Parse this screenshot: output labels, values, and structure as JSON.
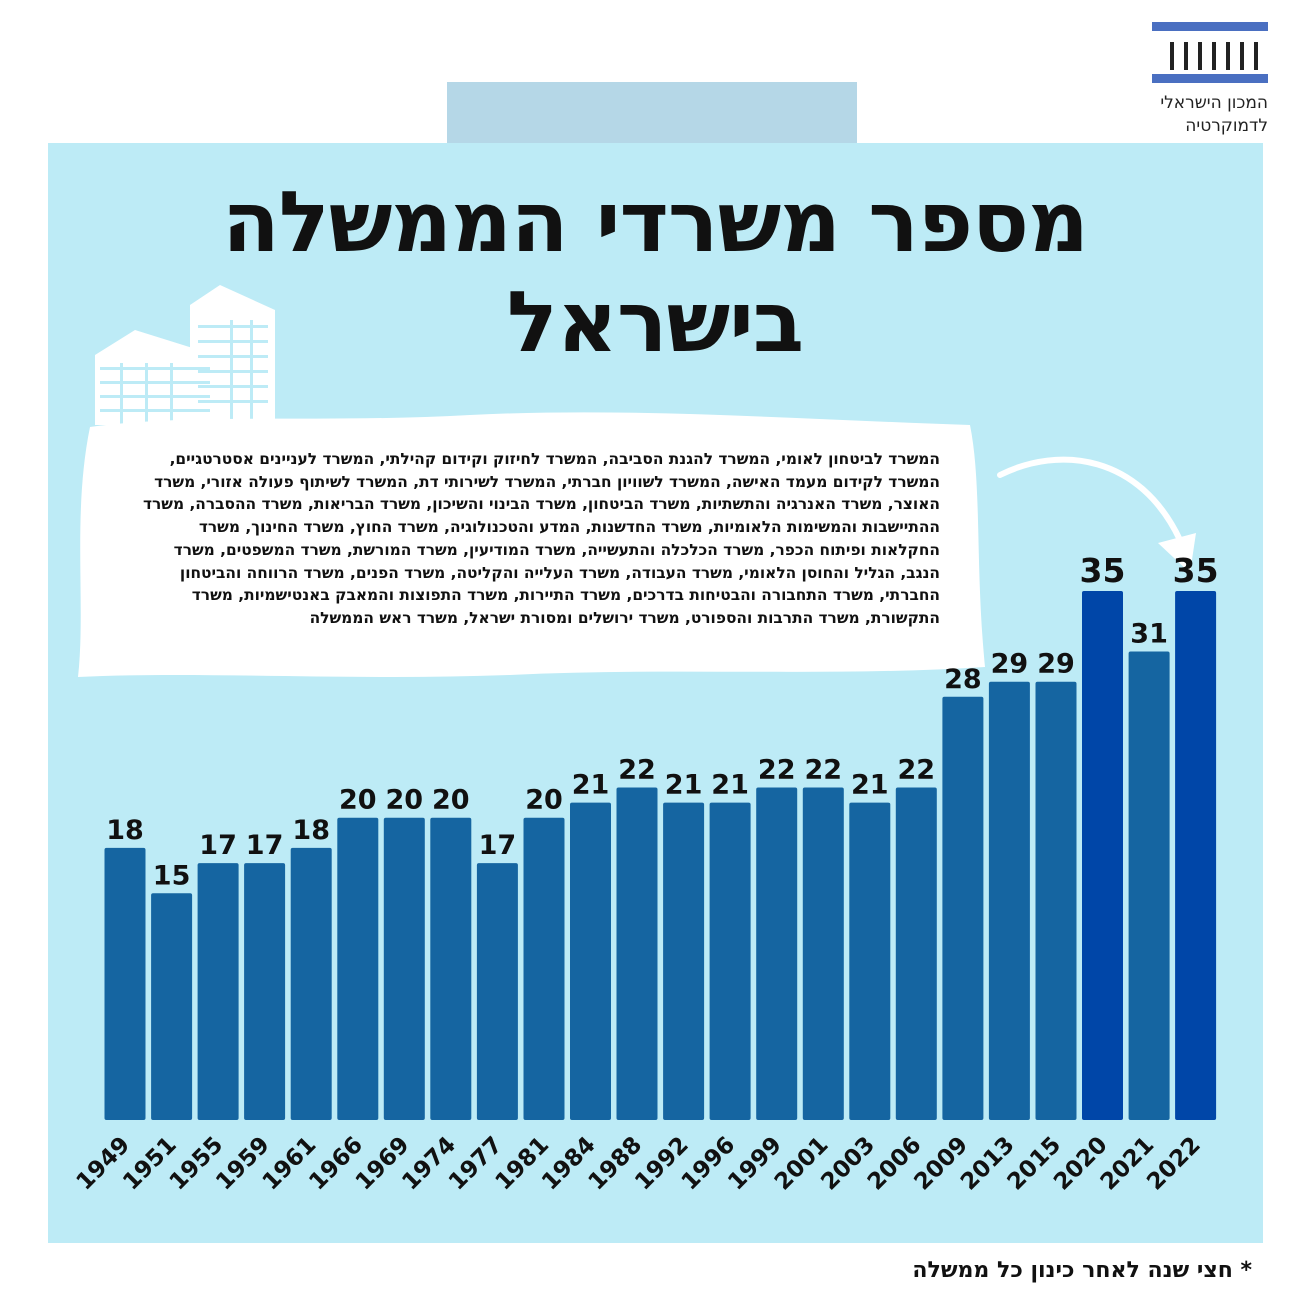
{
  "logo": {
    "line1": "המכון הישראלי",
    "line2": "לדמוקרטיה"
  },
  "title": "מספר משרדי הממשלה בישראל",
  "note_text": "המשרד לביטחון לאומי, המשרד להגנת הסביבה, המשרד לחיזוק וקידום קהילתי, המשרד לעניינים אסטרטגיים, המשרד לקידום מעמד האישה, המשרד לשוויון חברתי, המשרד לשירותי דת, המשרד לשיתוף פעולה אזורי, משרד האוצר, משרד האנרגיה והתשתיות, משרד הביטחון, משרד הבינוי והשיכון, משרד הבריאות, משרד ההסברה, משרד ההתיישבות והמשימות הלאומיות, משרד החדשנות, המדע והטכנולוגיה, משרד החוץ, משרד החינוך, משרד החקלאות ופיתוח הכפר, משרד הכלכלה והתעשייה, משרד המודיעין, משרד המורשת, משרד המשפטים, משרד הנגב, הגליל והחוסן הלאומי, משרד העבודה, משרד העלייה והקליטה, משרד הפנים, משרד הרווחה והביטחון החברתי, משרד התחבורה והבטיחות בדרכים, משרד התיירות, משרד התפוצות והמאבק באנטישמיות, משרד התקשורת, משרד התרבות והספורט, משרד ירושלים ומסורת ישראל, משרד ראש הממשלה",
  "footnote": "* חצי שנה לאחר כינון כל ממשלה",
  "colors": {
    "bar": "#1565a1",
    "highlight": "#0046a8",
    "panel": "#bdebf6",
    "logo": "#4a6fc1"
  },
  "chart_data": {
    "type": "bar",
    "title": "מספר משרדי הממשלה בישראל",
    "categories": [
      "1949",
      "1951",
      "1955",
      "1959",
      "1961",
      "1966",
      "1969",
      "1974",
      "1977",
      "1981",
      "1984",
      "1988",
      "1992",
      "1996",
      "1999",
      "2001",
      "2003",
      "2006",
      "2009",
      "2013",
      "2015",
      "2020",
      "2021",
      "2022"
    ],
    "values": [
      18,
      15,
      17,
      17,
      18,
      20,
      20,
      20,
      17,
      20,
      21,
      22,
      21,
      21,
      22,
      22,
      21,
      22,
      28,
      29,
      29,
      35,
      31,
      35
    ],
    "highlighted": [
      "2020",
      "2022"
    ],
    "ylim": [
      0,
      35
    ],
    "grid": false,
    "legend": "none"
  }
}
